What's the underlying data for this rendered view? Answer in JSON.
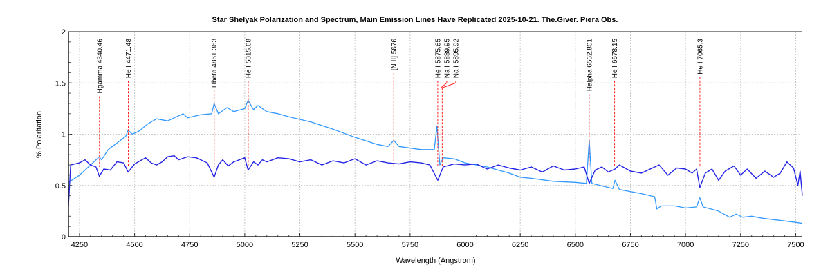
{
  "chart_data": {
    "type": "line",
    "title": "Star Shelyak Polarization and Spectrum, Main Emission Lines Have Replicated 2025-10-21. The.Giver. Piera Obs.",
    "xlabel": "Wavelength (Angstrom)",
    "ylabel": "% Polaritation",
    "xlim": [
      4200,
      7530
    ],
    "ylim": [
      0,
      2
    ],
    "xticks": [
      4250,
      4500,
      4750,
      5000,
      5250,
      5500,
      5750,
      6000,
      6250,
      6500,
      6750,
      7000,
      7250,
      7500
    ],
    "yticks": [
      0,
      0.5,
      1,
      1.5,
      2
    ],
    "grid": true,
    "colors": {
      "spectrum": "#3399ff",
      "polarization": "#2424e6",
      "lines": "#ff2020"
    },
    "lines": [
      {
        "label": "Hgamma 4340.46",
        "x": 4340.46
      },
      {
        "label": "He I 4471.48",
        "x": 4471.48
      },
      {
        "label": "Hbeta 4861.363",
        "x": 4861.363
      },
      {
        "label": "He I 5015.68",
        "x": 5015.68
      },
      {
        "label": "[N II] 5676",
        "x": 5676
      },
      {
        "label": "He I 5875.65",
        "x": 5875.65
      },
      {
        "label": "Na I 5889.95",
        "x": 5889.95
      },
      {
        "label": "Na I 5895.92",
        "x": 5895.92
      },
      {
        "label": "Halpha 6562.801",
        "x": 6562.801
      },
      {
        "label": "He I 6678.15",
        "x": 6678.15
      },
      {
        "label": "He I 7065.3",
        "x": 7065.3
      }
    ],
    "series": [
      {
        "color": "#3399ff",
        "points": [
          [
            4200,
            0.53
          ],
          [
            4250,
            0.6
          ],
          [
            4300,
            0.7
          ],
          [
            4340,
            0.78
          ],
          [
            4350,
            0.75
          ],
          [
            4380,
            0.85
          ],
          [
            4430,
            0.93
          ],
          [
            4460,
            0.98
          ],
          [
            4471,
            1.04
          ],
          [
            4490,
            1.0
          ],
          [
            4520,
            1.03
          ],
          [
            4560,
            1.1
          ],
          [
            4600,
            1.15
          ],
          [
            4650,
            1.13
          ],
          [
            4700,
            1.18
          ],
          [
            4720,
            1.2
          ],
          [
            4740,
            1.16
          ],
          [
            4800,
            1.19
          ],
          [
            4850,
            1.2
          ],
          [
            4861,
            1.3
          ],
          [
            4880,
            1.2
          ],
          [
            4920,
            1.26
          ],
          [
            4950,
            1.22
          ],
          [
            5000,
            1.25
          ],
          [
            5015,
            1.33
          ],
          [
            5040,
            1.24
          ],
          [
            5060,
            1.28
          ],
          [
            5100,
            1.22
          ],
          [
            5150,
            1.2
          ],
          [
            5200,
            1.17
          ],
          [
            5300,
            1.12
          ],
          [
            5400,
            1.05
          ],
          [
            5500,
            0.97
          ],
          [
            5600,
            0.9
          ],
          [
            5650,
            0.88
          ],
          [
            5676,
            0.94
          ],
          [
            5700,
            0.88
          ],
          [
            5800,
            0.85
          ],
          [
            5860,
            0.85
          ],
          [
            5872,
            1.08
          ],
          [
            5885,
            0.7
          ],
          [
            5900,
            0.77
          ],
          [
            5950,
            0.76
          ],
          [
            6000,
            0.72
          ],
          [
            6100,
            0.68
          ],
          [
            6150,
            0.65
          ],
          [
            6200,
            0.62
          ],
          [
            6250,
            0.58
          ],
          [
            6300,
            0.57
          ],
          [
            6400,
            0.54
          ],
          [
            6500,
            0.53
          ],
          [
            6550,
            0.52
          ],
          [
            6563,
            0.94
          ],
          [
            6575,
            0.52
          ],
          [
            6650,
            0.48
          ],
          [
            6670,
            0.47
          ],
          [
            6680,
            0.55
          ],
          [
            6700,
            0.46
          ],
          [
            6800,
            0.42
          ],
          [
            6860,
            0.39
          ],
          [
            6870,
            0.27
          ],
          [
            6890,
            0.3
          ],
          [
            6950,
            0.3
          ],
          [
            7000,
            0.28
          ],
          [
            7050,
            0.29
          ],
          [
            7065,
            0.38
          ],
          [
            7080,
            0.29
          ],
          [
            7150,
            0.25
          ],
          [
            7200,
            0.19
          ],
          [
            7230,
            0.22
          ],
          [
            7260,
            0.19
          ],
          [
            7300,
            0.2
          ],
          [
            7350,
            0.18
          ],
          [
            7500,
            0.14
          ],
          [
            7530,
            0.13
          ]
        ]
      },
      {
        "color": "#2424e6",
        "points": [
          [
            4200,
            0.3
          ],
          [
            4210,
            0.7
          ],
          [
            4250,
            0.72
          ],
          [
            4275,
            0.75
          ],
          [
            4300,
            0.7
          ],
          [
            4325,
            0.68
          ],
          [
            4340,
            0.59
          ],
          [
            4360,
            0.66
          ],
          [
            4390,
            0.65
          ],
          [
            4420,
            0.73
          ],
          [
            4450,
            0.72
          ],
          [
            4471,
            0.63
          ],
          [
            4500,
            0.71
          ],
          [
            4525,
            0.74
          ],
          [
            4550,
            0.77
          ],
          [
            4575,
            0.72
          ],
          [
            4600,
            0.7
          ],
          [
            4625,
            0.73
          ],
          [
            4650,
            0.78
          ],
          [
            4680,
            0.79
          ],
          [
            4700,
            0.75
          ],
          [
            4740,
            0.78
          ],
          [
            4780,
            0.77
          ],
          [
            4800,
            0.75
          ],
          [
            4830,
            0.72
          ],
          [
            4861,
            0.58
          ],
          [
            4880,
            0.7
          ],
          [
            4900,
            0.75
          ],
          [
            4925,
            0.69
          ],
          [
            4950,
            0.73
          ],
          [
            5000,
            0.77
          ],
          [
            5015,
            0.65
          ],
          [
            5040,
            0.73
          ],
          [
            5060,
            0.7
          ],
          [
            5080,
            0.75
          ],
          [
            5100,
            0.73
          ],
          [
            5150,
            0.77
          ],
          [
            5200,
            0.76
          ],
          [
            5250,
            0.73
          ],
          [
            5300,
            0.75
          ],
          [
            5350,
            0.7
          ],
          [
            5400,
            0.74
          ],
          [
            5450,
            0.72
          ],
          [
            5500,
            0.76
          ],
          [
            5550,
            0.7
          ],
          [
            5600,
            0.74
          ],
          [
            5650,
            0.72
          ],
          [
            5700,
            0.71
          ],
          [
            5750,
            0.73
          ],
          [
            5800,
            0.72
          ],
          [
            5840,
            0.7
          ],
          [
            5876,
            0.55
          ],
          [
            5900,
            0.68
          ],
          [
            5950,
            0.71
          ],
          [
            6000,
            0.7
          ],
          [
            6050,
            0.71
          ],
          [
            6100,
            0.66
          ],
          [
            6150,
            0.7
          ],
          [
            6200,
            0.67
          ],
          [
            6250,
            0.65
          ],
          [
            6300,
            0.68
          ],
          [
            6350,
            0.63
          ],
          [
            6400,
            0.69
          ],
          [
            6450,
            0.65
          ],
          [
            6500,
            0.66
          ],
          [
            6540,
            0.68
          ],
          [
            6563,
            0.52
          ],
          [
            6590,
            0.65
          ],
          [
            6620,
            0.68
          ],
          [
            6650,
            0.63
          ],
          [
            6680,
            0.66
          ],
          [
            6700,
            0.7
          ],
          [
            6750,
            0.64
          ],
          [
            6800,
            0.62
          ],
          [
            6850,
            0.67
          ],
          [
            6880,
            0.7
          ],
          [
            6920,
            0.6
          ],
          [
            6960,
            0.67
          ],
          [
            7000,
            0.66
          ],
          [
            7030,
            0.62
          ],
          [
            7050,
            0.66
          ],
          [
            7065,
            0.48
          ],
          [
            7090,
            0.62
          ],
          [
            7120,
            0.66
          ],
          [
            7150,
            0.55
          ],
          [
            7180,
            0.64
          ],
          [
            7220,
            0.69
          ],
          [
            7250,
            0.6
          ],
          [
            7280,
            0.66
          ],
          [
            7320,
            0.57
          ],
          [
            7360,
            0.64
          ],
          [
            7400,
            0.58
          ],
          [
            7430,
            0.62
          ],
          [
            7460,
            0.73
          ],
          [
            7490,
            0.67
          ],
          [
            7510,
            0.5
          ],
          [
            7520,
            0.64
          ],
          [
            7530,
            0.4
          ]
        ]
      }
    ]
  }
}
